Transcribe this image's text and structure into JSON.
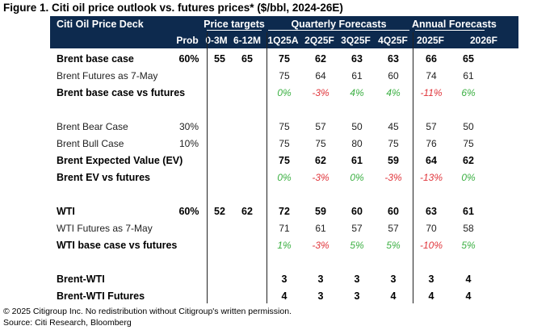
{
  "figure": {
    "title": "Figure 1. Citi oil price outlook vs. futures prices* ($/bbl, 2024-26E)"
  },
  "table": {
    "deck_title": "Citi Oil Price Deck",
    "groups": [
      "Price targets",
      "Quarterly Forecasts",
      "Annual Forecasts"
    ],
    "columns": [
      "Prob",
      "0-3M",
      "6-12M",
      "1Q25A",
      "2Q25F",
      "3Q25F",
      "4Q25F",
      "2025F",
      "2026F"
    ],
    "rows": [
      {
        "label": "Brent base case",
        "style": "bold",
        "cells": [
          "60%",
          "55",
          "65",
          "75",
          "62",
          "63",
          "63",
          "66",
          "65"
        ]
      },
      {
        "label": "Brent Futures as 7-May",
        "style": "light",
        "cells": [
          "",
          "",
          "",
          "75",
          "64",
          "61",
          "60",
          "74",
          "61"
        ]
      },
      {
        "label": "Brent base case vs futures",
        "style": "bold-delta",
        "cells": [
          "",
          "",
          "",
          "0%",
          "-3%",
          "4%",
          "4%",
          "-11%",
          "6%"
        ]
      },
      {
        "label": "",
        "style": "spacer",
        "cells": []
      },
      {
        "label": "Brent Bear Case",
        "style": "light",
        "cells": [
          "30%",
          "",
          "",
          "75",
          "57",
          "50",
          "45",
          "57",
          "50"
        ]
      },
      {
        "label": "Brent Bull Case",
        "style": "light",
        "cells": [
          "10%",
          "",
          "",
          "75",
          "75",
          "80",
          "75",
          "76",
          "75"
        ]
      },
      {
        "label": "Brent Expected Value (EV)",
        "style": "bold",
        "cells": [
          "",
          "",
          "",
          "75",
          "62",
          "61",
          "59",
          "64",
          "62"
        ]
      },
      {
        "label": "Brent EV vs futures",
        "style": "bold-delta",
        "cells": [
          "",
          "",
          "",
          "0%",
          "-3%",
          "0%",
          "-3%",
          "-13%",
          "0%"
        ]
      },
      {
        "label": "",
        "style": "spacer",
        "cells": []
      },
      {
        "label": "WTI",
        "style": "bold",
        "cells": [
          "60%",
          "52",
          "62",
          "72",
          "59",
          "60",
          "60",
          "63",
          "61"
        ]
      },
      {
        "label": "WTI Futures as 7-May",
        "style": "light",
        "cells": [
          "",
          "",
          "",
          "71",
          "61",
          "57",
          "57",
          "70",
          "58"
        ]
      },
      {
        "label": "WTI base case vs futures",
        "style": "bold-delta",
        "cells": [
          "",
          "",
          "",
          "1%",
          "-3%",
          "5%",
          "5%",
          "-10%",
          "5%"
        ]
      },
      {
        "label": "",
        "style": "spacer",
        "cells": []
      },
      {
        "label": "Brent-WTI",
        "style": "bold",
        "cells": [
          "",
          "",
          "",
          "3",
          "3",
          "3",
          "3",
          "3",
          "4"
        ]
      },
      {
        "label": "Brent-WTI Futures",
        "style": "bold",
        "cells": [
          "",
          "",
          "",
          "4",
          "3",
          "3",
          "4",
          "4",
          "4"
        ]
      }
    ]
  },
  "colors": {
    "header_bg": "#0d2a4e",
    "positive": "#3cb043",
    "negative": "#e0353b"
  },
  "footer": {
    "copyright": "© 2025 Citigroup Inc. No redistribution without Citigroup's written permission.",
    "source": "Source: Citi Research, Bloomberg"
  }
}
